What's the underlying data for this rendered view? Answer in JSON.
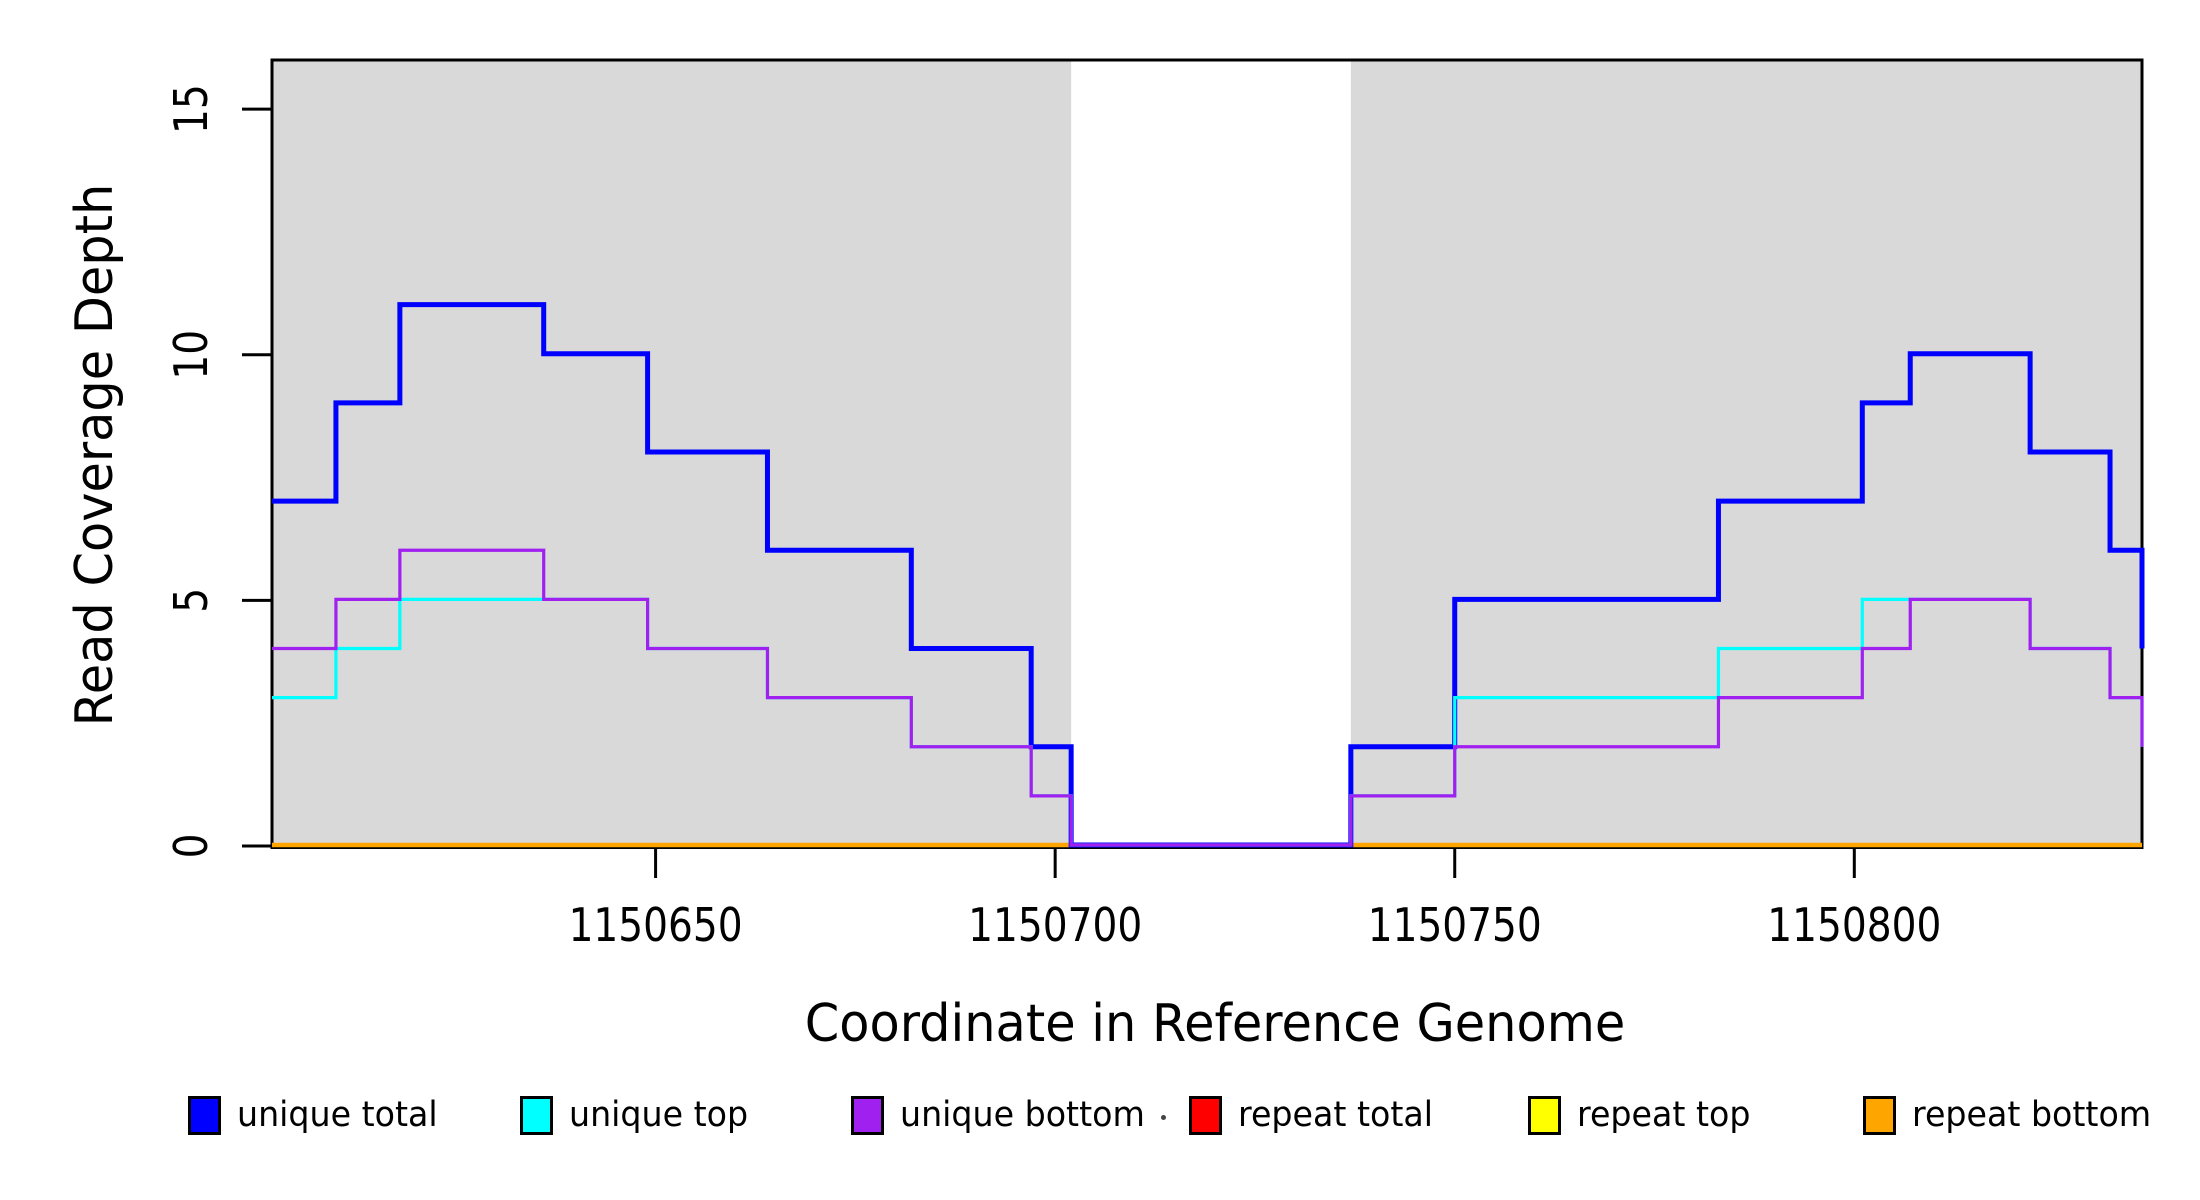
{
  "chart_data": {
    "type": "step-line",
    "title": "",
    "xlabel": "Coordinate in Reference Genome",
    "ylabel": "Read Coverage Depth",
    "xlim": [
      1150602,
      1150836
    ],
    "ylim": [
      0,
      16
    ],
    "xticks": [
      1150650,
      1150700,
      1150750,
      1150800
    ],
    "xtick_labels": [
      "1150650",
      "1150700",
      "1150750",
      "1150800"
    ],
    "yticks": [
      0,
      5,
      10,
      15
    ],
    "ytick_labels": [
      "0",
      "5",
      "10",
      "15"
    ],
    "grid": "off",
    "axis_color": "#000000",
    "background_shading": {
      "color": "#D9D9D9",
      "regions": [
        [
          1150602,
          1150702
        ],
        [
          1150737,
          1150836
        ]
      ],
      "gap_region": [
        1150702,
        1150737
      ]
    },
    "series": [
      {
        "name": "repeat total",
        "color": "#FF0000",
        "line_width": 4,
        "segments": [
          [
            [
              1150602,
              0
            ],
            [
              1150702,
              0
            ]
          ],
          [
            [
              1150737,
              0
            ],
            [
              1150836,
              0
            ]
          ]
        ]
      },
      {
        "name": "repeat top",
        "color": "#FFFF00",
        "line_width": 4,
        "segments": [
          [
            [
              1150602,
              0
            ],
            [
              1150702,
              0
            ]
          ],
          [
            [
              1150737,
              0
            ],
            [
              1150836,
              0
            ]
          ]
        ]
      },
      {
        "name": "repeat bottom",
        "color": "#FFA500",
        "line_width": 4.5,
        "segments": [
          [
            [
              1150602,
              0
            ],
            [
              1150702,
              0
            ]
          ],
          [
            [
              1150737,
              0
            ],
            [
              1150836,
              0
            ]
          ]
        ]
      },
      {
        "name": "unique total",
        "color": "#0000FF",
        "line_width": 5,
        "segments": [
          [
            [
              1150602,
              7
            ],
            [
              1150610,
              9
            ],
            [
              1150618,
              11
            ],
            [
              1150636,
              10
            ],
            [
              1150649,
              8
            ],
            [
              1150664,
              6
            ],
            [
              1150682,
              4
            ],
            [
              1150697,
              2
            ],
            [
              1150702,
              0
            ],
            [
              1150737,
              2
            ],
            [
              1150750,
              5
            ],
            [
              1150783,
              7
            ],
            [
              1150801,
              9
            ],
            [
              1150807,
              10
            ],
            [
              1150822,
              8
            ],
            [
              1150832,
              6
            ],
            [
              1150836,
              4
            ]
          ]
        ]
      },
      {
        "name": "unique top",
        "color": "#00FFFF",
        "line_width": 3.2,
        "segments": [
          [
            [
              1150602,
              3
            ],
            [
              1150610,
              4
            ],
            [
              1150618,
              5
            ],
            [
              1150636,
              5
            ],
            [
              1150649,
              4
            ],
            [
              1150664,
              3
            ],
            [
              1150682,
              2
            ],
            [
              1150697,
              1
            ],
            [
              1150702,
              0
            ],
            [
              1150737,
              1
            ],
            [
              1150750,
              3
            ],
            [
              1150783,
              4
            ],
            [
              1150801,
              5
            ],
            [
              1150807,
              5
            ],
            [
              1150822,
              4
            ],
            [
              1150832,
              3
            ],
            [
              1150836,
              2
            ]
          ]
        ]
      },
      {
        "name": "unique bottom",
        "color": "#A020F0",
        "line_width": 3.2,
        "segments": [
          [
            [
              1150602,
              4
            ],
            [
              1150610,
              5
            ],
            [
              1150618,
              6
            ],
            [
              1150636,
              5
            ],
            [
              1150649,
              4
            ],
            [
              1150664,
              3
            ],
            [
              1150682,
              2
            ],
            [
              1150697,
              1
            ],
            [
              1150702,
              0
            ],
            [
              1150737,
              1
            ],
            [
              1150750,
              2
            ],
            [
              1150783,
              3
            ],
            [
              1150801,
              4
            ],
            [
              1150807,
              5
            ],
            [
              1150822,
              4
            ],
            [
              1150832,
              3
            ],
            [
              1150836,
              2
            ]
          ]
        ]
      }
    ],
    "legend": {
      "position": "bottom",
      "items": [
        {
          "label": "unique total",
          "color": "#0000FF"
        },
        {
          "label": "unique top",
          "color": "#00FFFF"
        },
        {
          "label": "unique bottom",
          "color": "#A020F0"
        },
        {
          "label": "repeat total",
          "color": "#FF0000"
        },
        {
          "label": "repeat top",
          "color": "#FFFF00"
        },
        {
          "label": "repeat bottom",
          "color": "#FFA500"
        }
      ]
    }
  }
}
